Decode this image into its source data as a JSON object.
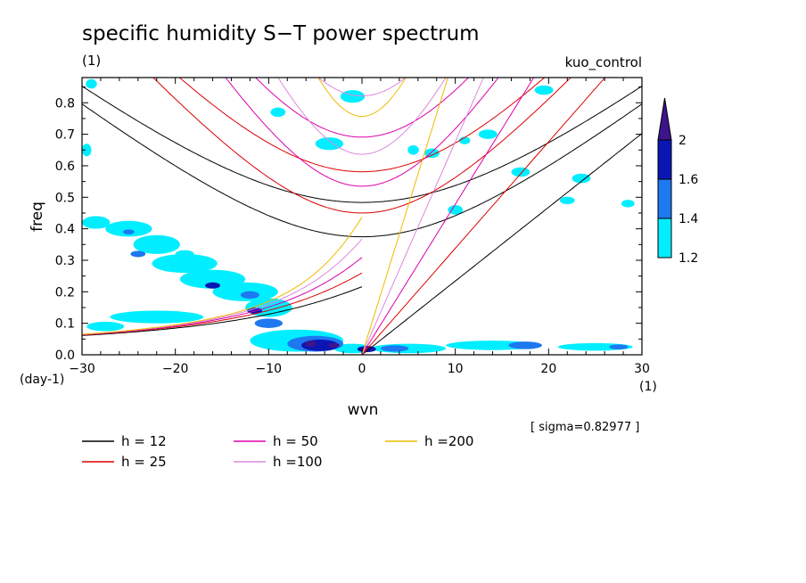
{
  "chart_data": {
    "type": "heatmap",
    "title": "specific humidity S−T power spectrum",
    "subtitle": "(1)",
    "run_label": "kuo_control",
    "xlabel": "wvn",
    "ylabel": "freq",
    "x_unit_label": "(1)",
    "y_unit_label": "(day-1)",
    "xlim": [
      -30,
      30
    ],
    "ylim": [
      0,
      0.88
    ],
    "x_ticks": [
      -30,
      -20,
      -10,
      0,
      10,
      20,
      30
    ],
    "x_tick_labels": [
      "−30",
      "−20",
      "−10",
      "0",
      "10",
      "20",
      "30"
    ],
    "y_ticks": [
      0.0,
      0.1,
      0.2,
      0.3,
      0.4,
      0.5,
      0.6,
      0.7,
      0.8
    ],
    "y_tick_labels": [
      "0.0",
      "0.1",
      "0.2",
      "0.3",
      "0.4",
      "0.5",
      "0.6",
      "0.7",
      "0.8"
    ],
    "sigma_label": "[ sigma=0.82977 ]",
    "colorbar": {
      "levels": [
        1.2,
        1.4,
        1.6,
        2
      ],
      "labels": [
        "1.2",
        "1.4",
        "1.6",
        "2"
      ],
      "colors": [
        "#00eeff",
        "#1e78f0",
        "#0a16b4",
        "#3c148c"
      ]
    },
    "dispersion_curves": [
      {
        "label": "h = 12",
        "h": 12,
        "color": "#000000"
      },
      {
        "label": "h = 25",
        "h": 25,
        "color": "#dd0000"
      },
      {
        "label": "h = 50",
        "h": 50,
        "color": "#dd00aa"
      },
      {
        "label": "h =100",
        "h": 100,
        "color": "#dd88dd"
      },
      {
        "label": "h =200",
        "h": 200,
        "color": "#eebb00"
      }
    ],
    "contour_regions": [
      {
        "level": 1.2,
        "x": -28.5,
        "y": 0.42,
        "rx": 1.5,
        "ry": 0.02
      },
      {
        "level": 1.2,
        "x": -25.0,
        "y": 0.4,
        "rx": 2.5,
        "ry": 0.025
      },
      {
        "level": 1.4,
        "x": -25.0,
        "y": 0.39,
        "rx": 0.6,
        "ry": 0.008
      },
      {
        "level": 1.2,
        "x": -22.0,
        "y": 0.35,
        "rx": 2.5,
        "ry": 0.03
      },
      {
        "level": 1.4,
        "x": -24.0,
        "y": 0.32,
        "rx": 0.8,
        "ry": 0.01
      },
      {
        "level": 1.2,
        "x": -19.0,
        "y": 0.29,
        "rx": 3.5,
        "ry": 0.03
      },
      {
        "level": 1.2,
        "x": -16.0,
        "y": 0.24,
        "rx": 3.5,
        "ry": 0.03
      },
      {
        "level": 1.6,
        "x": -16.0,
        "y": 0.22,
        "rx": 0.8,
        "ry": 0.01
      },
      {
        "level": 1.2,
        "x": -12.5,
        "y": 0.2,
        "rx": 3.5,
        "ry": 0.03
      },
      {
        "level": 1.4,
        "x": -12.0,
        "y": 0.19,
        "rx": 1.0,
        "ry": 0.012
      },
      {
        "level": 1.2,
        "x": -10.0,
        "y": 0.15,
        "rx": 2.5,
        "ry": 0.03
      },
      {
        "level": 1.6,
        "x": -11.5,
        "y": 0.14,
        "rx": 0.8,
        "ry": 0.01
      },
      {
        "level": 1.4,
        "x": -10.0,
        "y": 0.1,
        "rx": 1.5,
        "ry": 0.015
      },
      {
        "level": 1.2,
        "x": -22.0,
        "y": 0.12,
        "rx": 5.0,
        "ry": 0.02
      },
      {
        "level": 1.2,
        "x": -27.5,
        "y": 0.09,
        "rx": 2.0,
        "ry": 0.015
      },
      {
        "level": 1.2,
        "x": -7.0,
        "y": 0.045,
        "rx": 5.0,
        "ry": 0.035
      },
      {
        "level": 1.4,
        "x": -5.0,
        "y": 0.035,
        "rx": 3.0,
        "ry": 0.025
      },
      {
        "level": 1.6,
        "x": -4.5,
        "y": 0.03,
        "rx": 2.0,
        "ry": 0.018
      },
      {
        "level": 2,
        "x": -5.5,
        "y": 0.035,
        "rx": 0.6,
        "ry": 0.01
      },
      {
        "level": 2,
        "x": -3.0,
        "y": 0.03,
        "rx": 0.6,
        "ry": 0.008
      },
      {
        "level": 1.2,
        "x": -1.0,
        "y": 0.02,
        "rx": 2.0,
        "ry": 0.015
      },
      {
        "level": 1.6,
        "x": 0.5,
        "y": 0.018,
        "rx": 1.0,
        "ry": 0.01
      },
      {
        "level": 1.2,
        "x": 5.0,
        "y": 0.02,
        "rx": 4.0,
        "ry": 0.015
      },
      {
        "level": 1.4,
        "x": 3.5,
        "y": 0.02,
        "rx": 1.5,
        "ry": 0.01
      },
      {
        "level": 1.2,
        "x": 14.0,
        "y": 0.03,
        "rx": 5.0,
        "ry": 0.015
      },
      {
        "level": 1.4,
        "x": 17.5,
        "y": 0.03,
        "rx": 1.8,
        "ry": 0.012
      },
      {
        "level": 1.2,
        "x": 25.0,
        "y": 0.025,
        "rx": 4.0,
        "ry": 0.012
      },
      {
        "level": 1.4,
        "x": 27.5,
        "y": 0.025,
        "rx": 1.0,
        "ry": 0.008
      },
      {
        "level": 1.2,
        "x": -1.0,
        "y": 0.82,
        "rx": 1.3,
        "ry": 0.02
      },
      {
        "level": 1.2,
        "x": -3.5,
        "y": 0.67,
        "rx": 1.5,
        "ry": 0.02
      },
      {
        "level": 1.2,
        "x": 5.5,
        "y": 0.65,
        "rx": 0.6,
        "ry": 0.015
      },
      {
        "level": 1.2,
        "x": 7.5,
        "y": 0.64,
        "rx": 0.8,
        "ry": 0.015
      },
      {
        "level": 1.2,
        "x": 10.0,
        "y": 0.46,
        "rx": 0.8,
        "ry": 0.015
      },
      {
        "level": 1.2,
        "x": 13.5,
        "y": 0.7,
        "rx": 1.0,
        "ry": 0.015
      },
      {
        "level": 1.2,
        "x": 17.0,
        "y": 0.58,
        "rx": 1.0,
        "ry": 0.015
      },
      {
        "level": 1.2,
        "x": 19.5,
        "y": 0.84,
        "rx": 1.0,
        "ry": 0.015
      },
      {
        "level": 1.2,
        "x": 22.0,
        "y": 0.49,
        "rx": 0.8,
        "ry": 0.012
      },
      {
        "level": 1.2,
        "x": 23.5,
        "y": 0.56,
        "rx": 1.0,
        "ry": 0.015
      },
      {
        "level": 1.2,
        "x": -29.5,
        "y": 0.65,
        "rx": 0.5,
        "ry": 0.02
      },
      {
        "level": 1.2,
        "x": -29.0,
        "y": 0.86,
        "rx": 0.6,
        "ry": 0.015
      },
      {
        "level": 1.2,
        "x": -19.0,
        "y": 0.32,
        "rx": 1.0,
        "ry": 0.012
      },
      {
        "level": 1.2,
        "x": -9.0,
        "y": 0.77,
        "rx": 0.8,
        "ry": 0.015
      },
      {
        "level": 1.2,
        "x": 11.0,
        "y": 0.68,
        "rx": 0.6,
        "ry": 0.012
      },
      {
        "level": 1.2,
        "x": 28.5,
        "y": 0.48,
        "rx": 0.7,
        "ry": 0.012
      }
    ]
  }
}
